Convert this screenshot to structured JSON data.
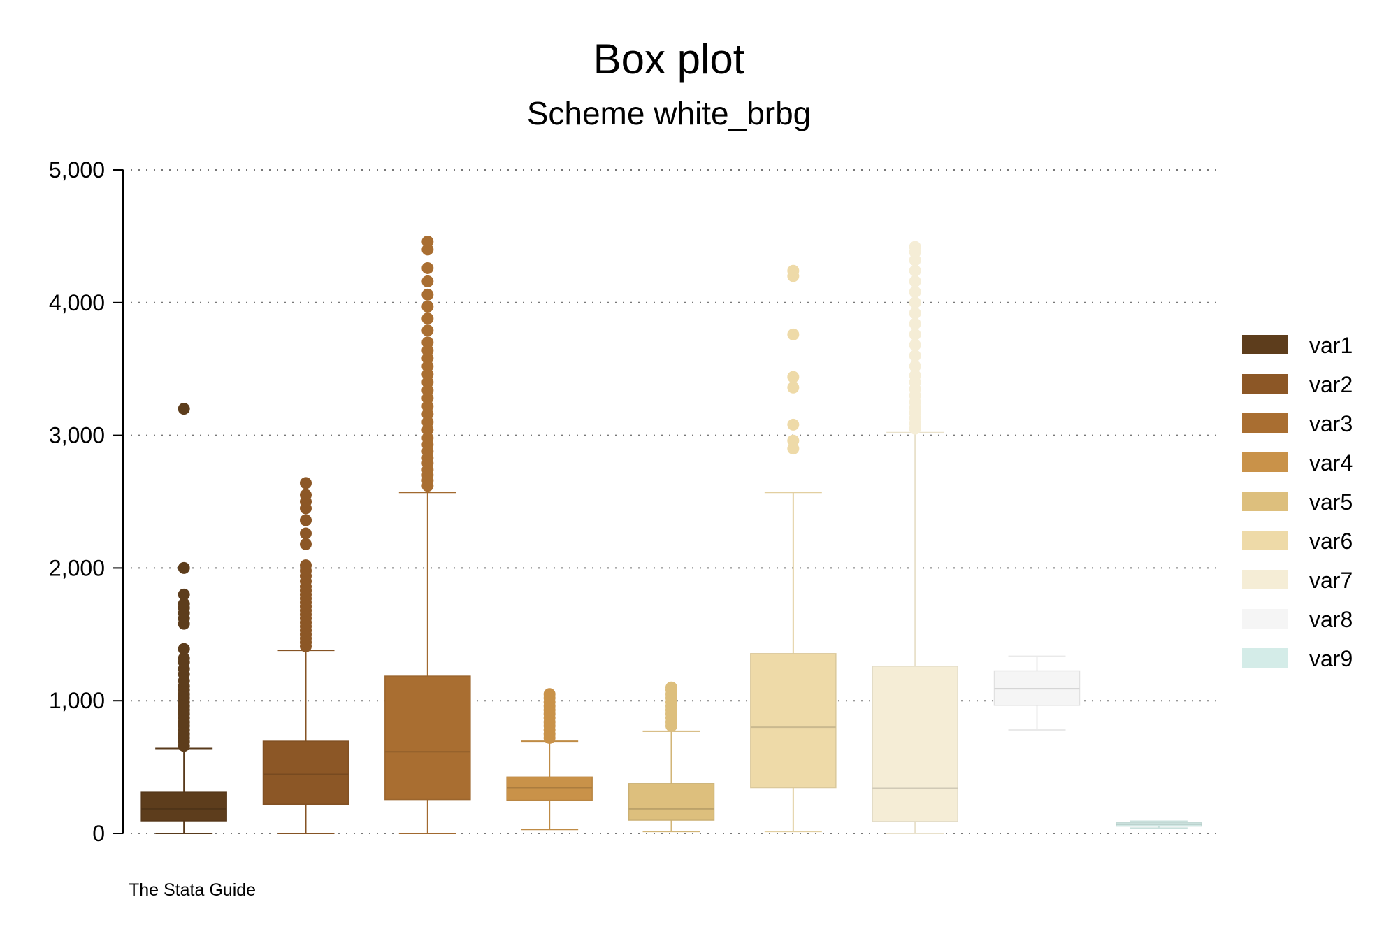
{
  "chart_data": {
    "type": "box",
    "title": "Box plot",
    "subtitle": "Scheme white_brbg",
    "note": "The Stata Guide",
    "ylim": [
      0,
      5000
    ],
    "yticks": [
      0,
      1000,
      2000,
      3000,
      4000,
      5000
    ],
    "ytick_labels": [
      "0",
      "1,000",
      "2,000",
      "3,000",
      "4,000",
      "5,000"
    ],
    "grid": true,
    "legend_position": "right",
    "series": [
      {
        "name": "var1",
        "color": "#5d3d1c",
        "min": 0,
        "q1": 95,
        "median": 185,
        "q3": 310,
        "max": 640,
        "outliers": [
          660,
          690,
          720,
          750,
          780,
          810,
          840,
          870,
          900,
          930,
          960,
          990,
          1020,
          1050,
          1080,
          1110,
          1150,
          1200,
          1240,
          1290,
          1320,
          1390,
          1580,
          1620,
          1660,
          1700,
          1730,
          1800,
          2000,
          3200
        ]
      },
      {
        "name": "var2",
        "color": "#8c5726",
        "min": 0,
        "q1": 220,
        "median": 445,
        "q3": 695,
        "max": 1380,
        "outliers": [
          1410,
          1440,
          1470,
          1500,
          1530,
          1560,
          1590,
          1620,
          1650,
          1680,
          1710,
          1740,
          1770,
          1800,
          1830,
          1860,
          1900,
          1940,
          1980,
          2020,
          2180,
          2260,
          2360,
          2450,
          2500,
          2550,
          2640
        ]
      },
      {
        "name": "var3",
        "color": "#a96e31",
        "min": 0,
        "q1": 255,
        "median": 615,
        "q3": 1185,
        "max": 2570,
        "outliers": [
          2620,
          2660,
          2700,
          2740,
          2790,
          2830,
          2880,
          2930,
          2980,
          3040,
          3100,
          3160,
          3220,
          3280,
          3340,
          3400,
          3460,
          3520,
          3580,
          3640,
          3700,
          3790,
          3880,
          3970,
          4060,
          4160,
          4260,
          4400,
          4460
        ]
      },
      {
        "name": "var4",
        "color": "#c99249",
        "min": 30,
        "q1": 250,
        "median": 345,
        "q3": 425,
        "max": 695,
        "outliers": [
          720,
          750,
          780,
          810,
          840,
          870,
          900,
          930,
          960,
          990,
          1020,
          1050
        ]
      },
      {
        "name": "var5",
        "color": "#ddbf7d",
        "min": 15,
        "q1": 100,
        "median": 185,
        "q3": 375,
        "max": 770,
        "outliers": [
          810,
          840,
          870,
          900,
          930,
          960,
          990,
          1020,
          1050,
          1080,
          1100
        ]
      },
      {
        "name": "var6",
        "color": "#eedaa8",
        "min": 15,
        "q1": 345,
        "median": 800,
        "q3": 1355,
        "max": 2570,
        "outliers": [
          2900,
          2960,
          3080,
          3360,
          3440,
          3760,
          4200,
          4240
        ]
      },
      {
        "name": "var7",
        "color": "#f5edd6",
        "min": 0,
        "q1": 90,
        "median": 340,
        "q3": 1260,
        "max": 3020,
        "outliers": [
          3050,
          3090,
          3130,
          3170,
          3210,
          3250,
          3300,
          3350,
          3400,
          3450,
          3520,
          3600,
          3680,
          3760,
          3840,
          3920,
          4000,
          4080,
          4160,
          4240,
          4320,
          4380,
          4420
        ]
      },
      {
        "name": "var8",
        "color": "#f5f5f5",
        "min": 780,
        "q1": 965,
        "median": 1090,
        "q3": 1225,
        "max": 1335,
        "outliers": []
      },
      {
        "name": "var9",
        "color": "#d4ece8",
        "min": 40,
        "q1": 55,
        "median": 70,
        "q3": 82,
        "max": 92,
        "outliers": []
      }
    ]
  }
}
